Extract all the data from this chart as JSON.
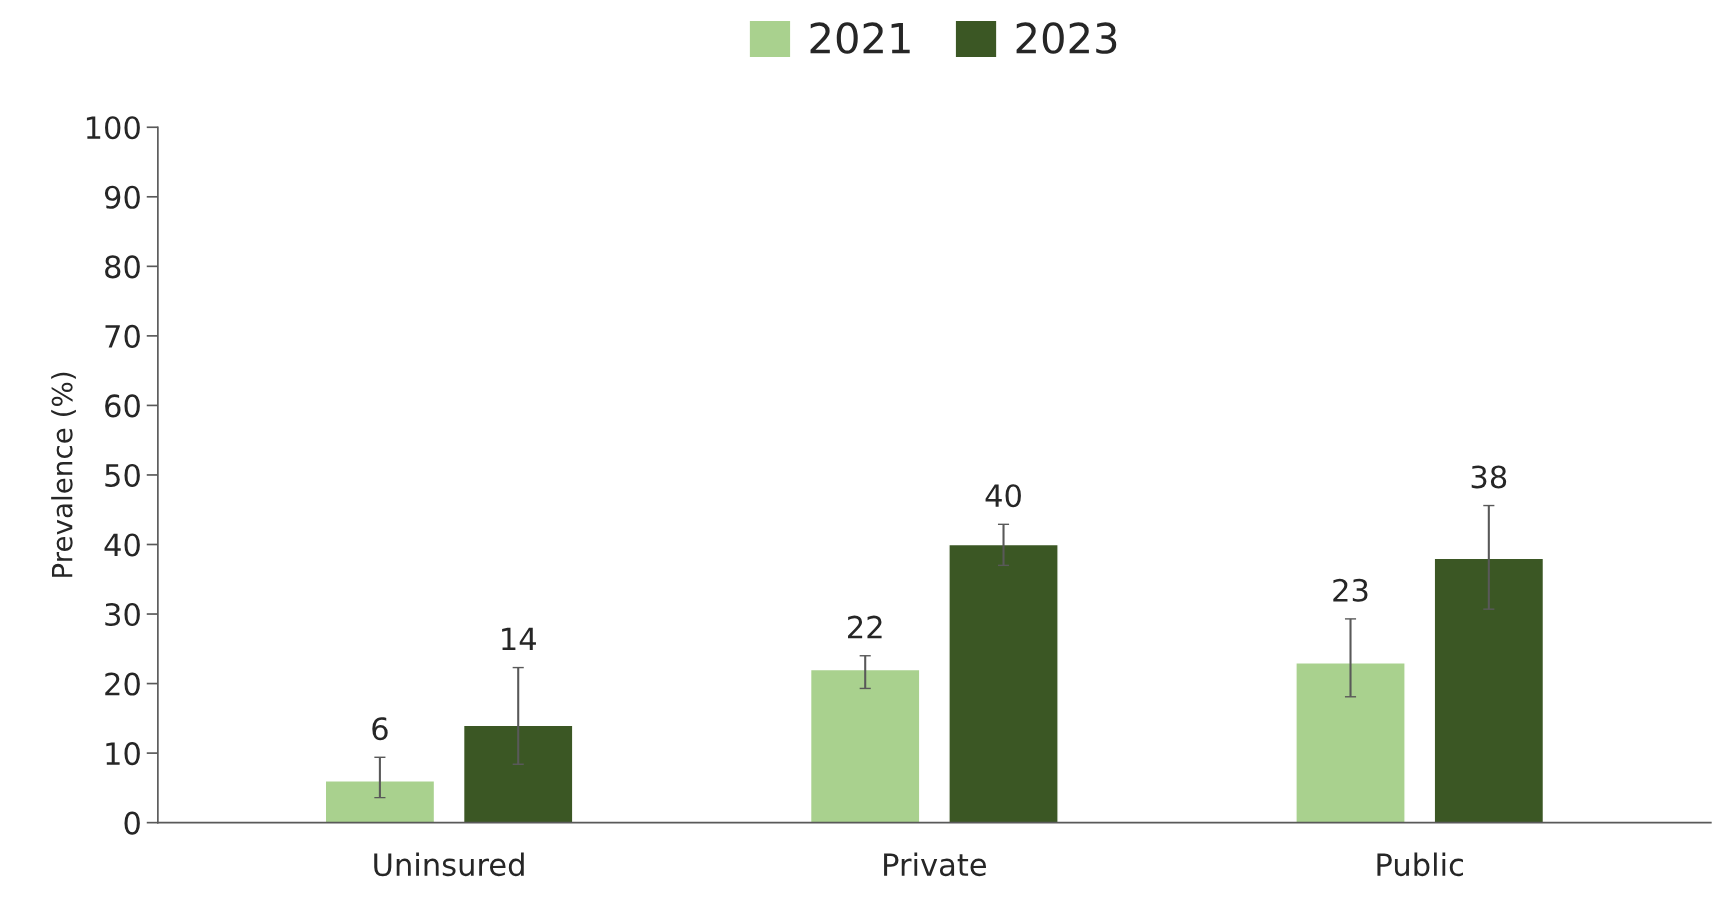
{
  "chart_data": {
    "type": "bar",
    "categories": [
      "Uninsured",
      "Private",
      "Public"
    ],
    "ylabel": "Prevalence (%)",
    "ylim": [
      0,
      100
    ],
    "yticks": [
      0,
      10,
      20,
      30,
      40,
      50,
      60,
      70,
      80,
      90,
      100
    ],
    "grid": false,
    "legend": "top",
    "data_labels": true,
    "series": [
      {
        "name": "2021",
        "color": "#a9d18e",
        "values": [
          6,
          22,
          23
        ],
        "errors": [
          [
            3.6,
            9.4
          ],
          [
            19.3,
            24.0
          ],
          [
            18.1,
            29.3
          ]
        ]
      },
      {
        "name": "2023",
        "color": "#3b5724",
        "values": [
          14,
          40,
          38
        ],
        "errors": [
          [
            8.4,
            22.3
          ],
          [
            37.0,
            42.9
          ],
          [
            30.7,
            45.6
          ]
        ]
      }
    ]
  }
}
